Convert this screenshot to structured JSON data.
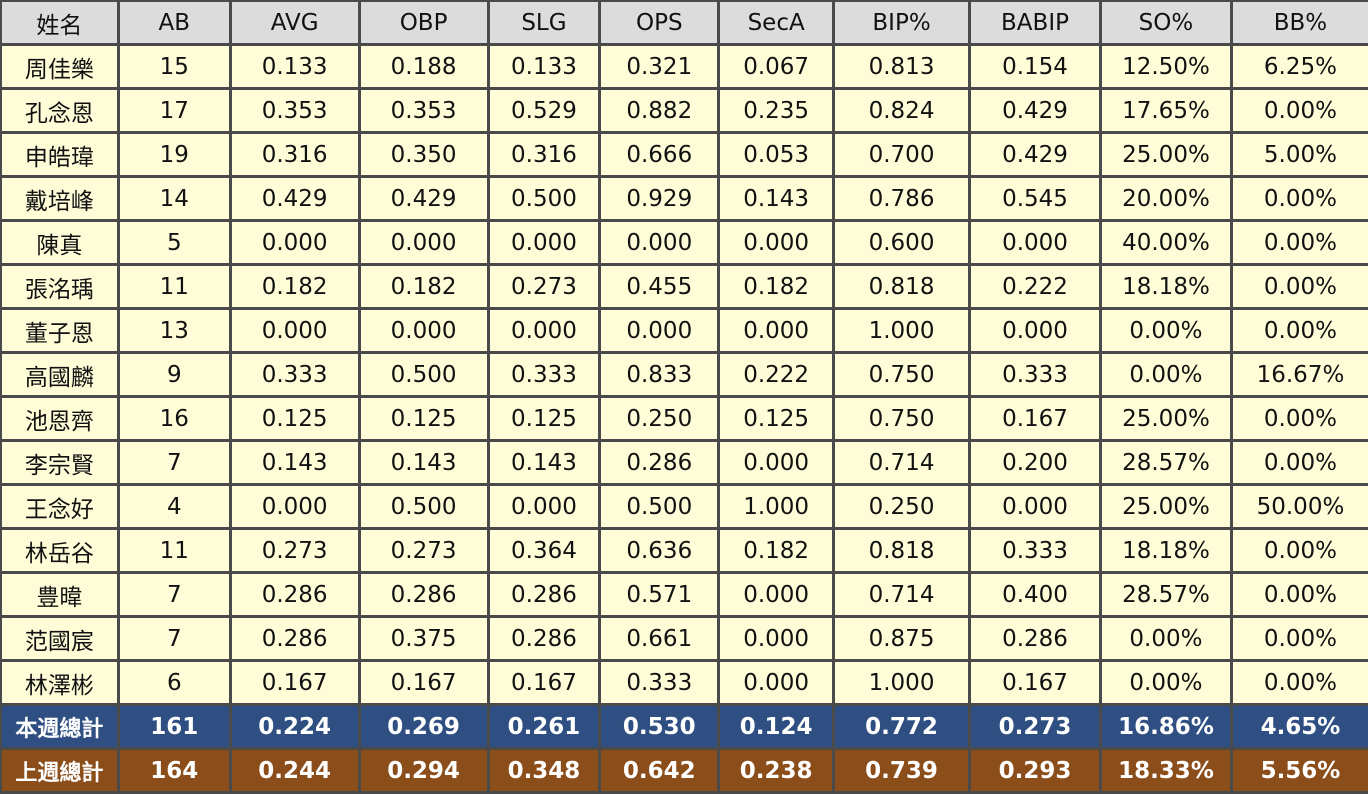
{
  "columns": [
    "姓名",
    "AB",
    "AVG",
    "OBP",
    "SLG",
    "OPS",
    "SecA",
    "BIP%",
    "BABIP",
    "SO%",
    "BB%"
  ],
  "rows": [
    [
      "周佳樂",
      "15",
      "0.133",
      "0.188",
      "0.133",
      "0.321",
      "0.067",
      "0.813",
      "0.154",
      "12.50%",
      "6.25%"
    ],
    [
      "孔念恩",
      "17",
      "0.353",
      "0.353",
      "0.529",
      "0.882",
      "0.235",
      "0.824",
      "0.429",
      "17.65%",
      "0.00%"
    ],
    [
      "申皓瑋",
      "19",
      "0.316",
      "0.350",
      "0.316",
      "0.666",
      "0.053",
      "0.700",
      "0.429",
      "25.00%",
      "5.00%"
    ],
    [
      "戴培峰",
      "14",
      "0.429",
      "0.429",
      "0.500",
      "0.929",
      "0.143",
      "0.786",
      "0.545",
      "20.00%",
      "0.00%"
    ],
    [
      "陳真",
      "5",
      "0.000",
      "0.000",
      "0.000",
      "0.000",
      "0.000",
      "0.600",
      "0.000",
      "40.00%",
      "0.00%"
    ],
    [
      "張洺瑀",
      "11",
      "0.182",
      "0.182",
      "0.273",
      "0.455",
      "0.182",
      "0.818",
      "0.222",
      "18.18%",
      "0.00%"
    ],
    [
      "董子恩",
      "13",
      "0.000",
      "0.000",
      "0.000",
      "0.000",
      "0.000",
      "1.000",
      "0.000",
      "0.00%",
      "0.00%"
    ],
    [
      "高國麟",
      "9",
      "0.333",
      "0.500",
      "0.333",
      "0.833",
      "0.222",
      "0.750",
      "0.333",
      "0.00%",
      "16.67%"
    ],
    [
      "池恩齊",
      "16",
      "0.125",
      "0.125",
      "0.125",
      "0.250",
      "0.125",
      "0.750",
      "0.167",
      "25.00%",
      "0.00%"
    ],
    [
      "李宗賢",
      "7",
      "0.143",
      "0.143",
      "0.143",
      "0.286",
      "0.000",
      "0.714",
      "0.200",
      "28.57%",
      "0.00%"
    ],
    [
      "王念好",
      "4",
      "0.000",
      "0.500",
      "0.000",
      "0.500",
      "1.000",
      "0.250",
      "0.000",
      "25.00%",
      "50.00%"
    ],
    [
      "林岳谷",
      "11",
      "0.273",
      "0.273",
      "0.364",
      "0.636",
      "0.182",
      "0.818",
      "0.333",
      "18.18%",
      "0.00%"
    ],
    [
      "豊暐",
      "7",
      "0.286",
      "0.286",
      "0.286",
      "0.571",
      "0.000",
      "0.714",
      "0.400",
      "28.57%",
      "0.00%"
    ],
    [
      "范國宸",
      "7",
      "0.286",
      "0.375",
      "0.286",
      "0.661",
      "0.000",
      "0.875",
      "0.286",
      "0.00%",
      "0.00%"
    ],
    [
      "林澤彬",
      "6",
      "0.167",
      "0.167",
      "0.167",
      "0.333",
      "0.000",
      "1.000",
      "0.167",
      "0.00%",
      "0.00%"
    ]
  ],
  "this_week_total": [
    "本週總計",
    "161",
    "0.224",
    "0.269",
    "0.261",
    "0.530",
    "0.124",
    "0.772",
    "0.273",
    "16.86%",
    "4.65%"
  ],
  "last_week_total": [
    "上週總計",
    "164",
    "0.244",
    "0.294",
    "0.348",
    "0.642",
    "0.238",
    "0.739",
    "0.293",
    "18.33%",
    "5.56%"
  ],
  "colors": {
    "header_bg": "#dcdcdc",
    "row_bg": "#fffdd8",
    "this_week_bg": "#2f4f82",
    "last_week_bg": "#8b4d1a",
    "border": "#4a4a4a"
  }
}
